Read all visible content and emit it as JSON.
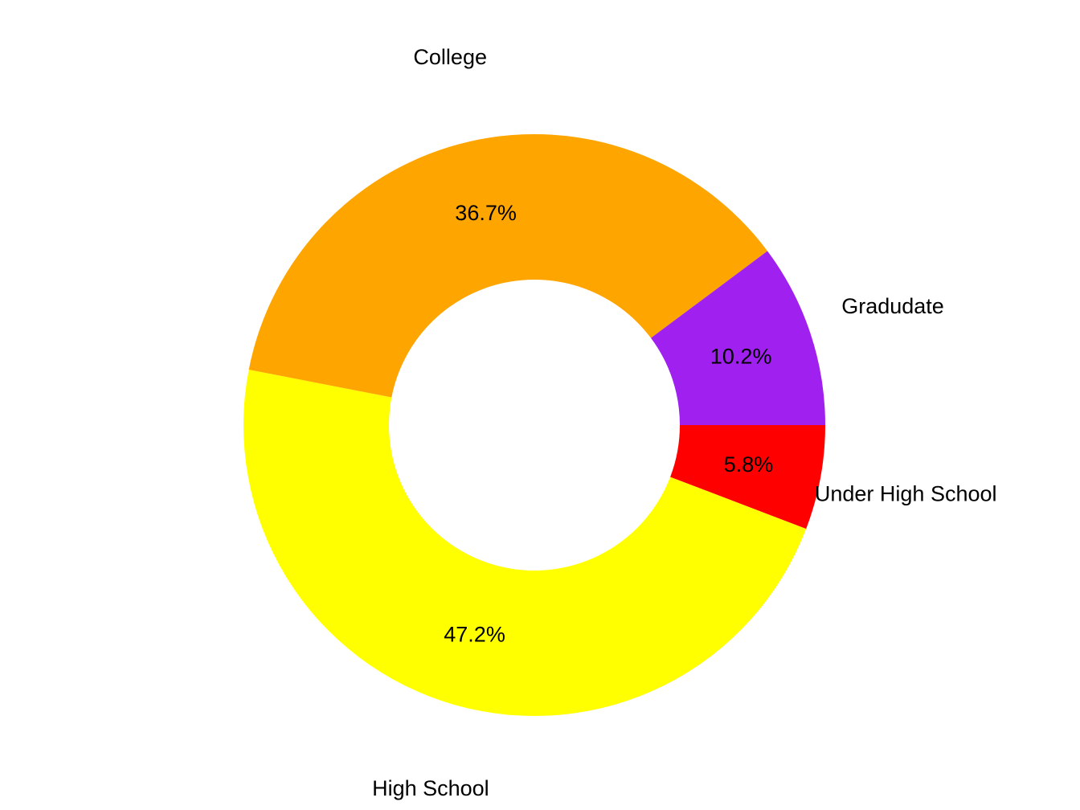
{
  "chart_data": {
    "type": "pie",
    "donut": true,
    "categories": [
      "Under High School",
      "High School",
      "College",
      "Gradudate"
    ],
    "values": [
      5.8,
      47.2,
      36.7,
      10.2
    ],
    "percent_labels": [
      "5.8%",
      "47.2%",
      "36.7%",
      "10.2%"
    ],
    "colors": [
      "#ff0000",
      "#ffff00",
      "#ffa500",
      "#a020f0"
    ],
    "title": "",
    "legend": "none",
    "direction": "clockwise",
    "start": "right"
  }
}
